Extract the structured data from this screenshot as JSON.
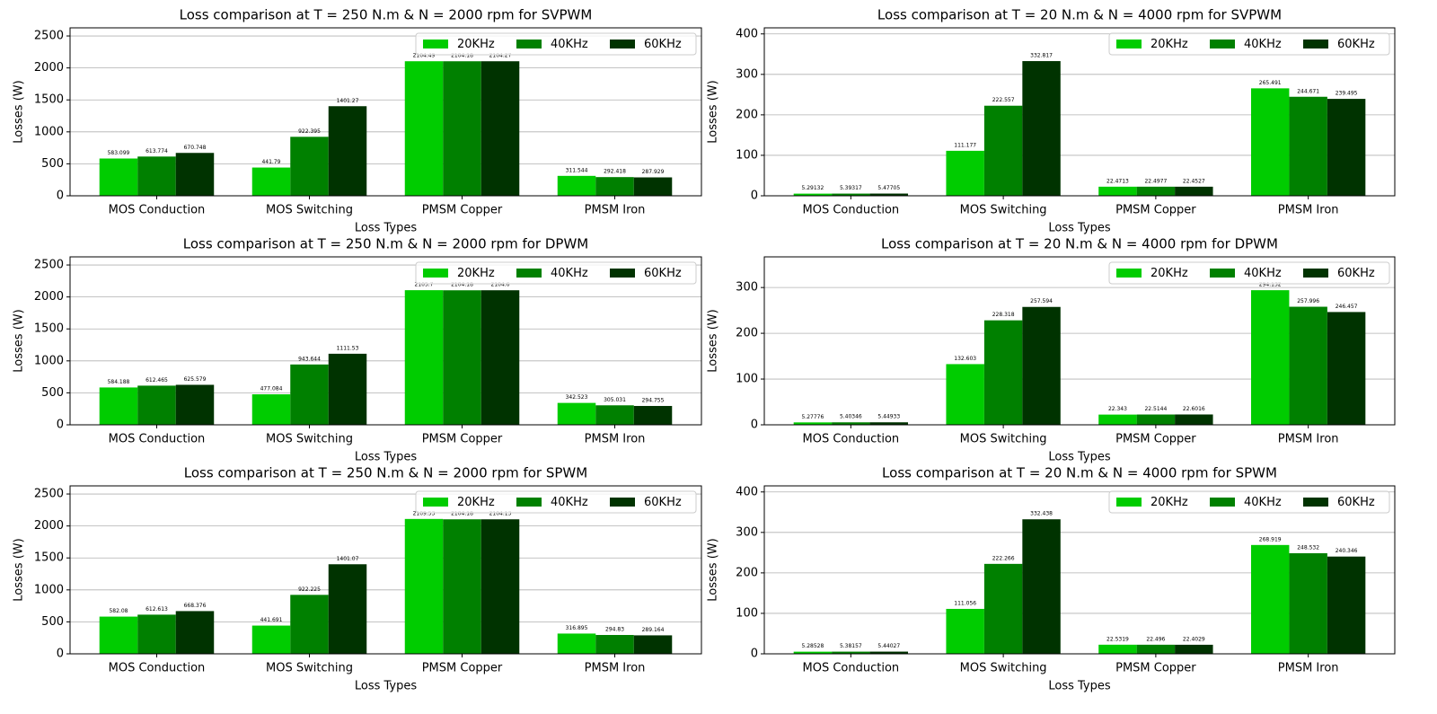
{
  "chart_data": [
    {
      "type": "bar",
      "title": "Loss comparison at T = 250 N.m & N = 2000 rpm for SVPWM",
      "xlabel": "Loss Types",
      "ylabel": "Losses (W)",
      "categories": [
        "MOS Conduction",
        "MOS Switching",
        "PMSM Copper",
        "PMSM Iron"
      ],
      "series": [
        {
          "name": "20KHz",
          "color": "#00cc00",
          "values": [
            583.099,
            441.79,
            2104.49,
            311.544
          ]
        },
        {
          "name": "40KHz",
          "color": "#008000",
          "values": [
            613.774,
            922.395,
            2104.18,
            292.418
          ]
        },
        {
          "name": "60KHz",
          "color": "#003300",
          "values": [
            670.748,
            1401.27,
            2104.27,
            287.929
          ]
        }
      ],
      "ylim": [
        0,
        2627
      ],
      "yticks": [
        0,
        500,
        1000,
        1500,
        2000,
        2500
      ],
      "grid": true,
      "legend": "upper right"
    },
    {
      "type": "bar",
      "title": "Loss comparison at T = 20 N.m & N = 4000 rpm for SVPWM",
      "xlabel": "Loss Types",
      "ylabel": "Losses (W)",
      "categories": [
        "MOS Conduction",
        "MOS Switching",
        "PMSM Copper",
        "PMSM Iron"
      ],
      "series": [
        {
          "name": "20KHz",
          "color": "#00cc00",
          "values": [
            5.29132,
            111.177,
            22.4713,
            265.491
          ]
        },
        {
          "name": "40KHz",
          "color": "#008000",
          "values": [
            5.39317,
            222.557,
            22.4977,
            244.671
          ]
        },
        {
          "name": "60KHz",
          "color": "#003300",
          "values": [
            5.47705,
            332.817,
            22.4527,
            239.495
          ]
        }
      ],
      "ylim": [
        0,
        415
      ],
      "yticks": [
        0,
        100,
        200,
        300,
        400
      ],
      "grid": true,
      "legend": "upper right"
    },
    {
      "type": "bar",
      "title": "Loss comparison at T = 250 N.m & N = 2000 rpm for DPWM",
      "xlabel": "Loss Types",
      "ylabel": "Losses (W)",
      "categories": [
        "MOS Conduction",
        "MOS Switching",
        "PMSM Copper",
        "PMSM Iron"
      ],
      "series": [
        {
          "name": "20KHz",
          "color": "#00cc00",
          "values": [
            584.188,
            477.084,
            2105.7,
            342.523
          ]
        },
        {
          "name": "40KHz",
          "color": "#008000",
          "values": [
            612.465,
            943.644,
            2104.18,
            305.031
          ]
        },
        {
          "name": "60KHz",
          "color": "#003300",
          "values": [
            625.579,
            1111.53,
            2104.6,
            294.755
          ]
        }
      ],
      "ylim": [
        0,
        2627
      ],
      "yticks": [
        0,
        500,
        1000,
        1500,
        2000,
        2500
      ],
      "grid": true,
      "legend": "upper right"
    },
    {
      "type": "bar",
      "title": "Loss comparison at T = 20 N.m & N = 4000 rpm for DPWM",
      "xlabel": "Loss Types",
      "ylabel": "Losses (W)",
      "categories": [
        "MOS Conduction",
        "MOS Switching",
        "PMSM Copper",
        "PMSM Iron"
      ],
      "series": [
        {
          "name": "20KHz",
          "color": "#00cc00",
          "values": [
            5.27776,
            132.603,
            22.343,
            294.132
          ]
        },
        {
          "name": "40KHz",
          "color": "#008000",
          "values": [
            5.40346,
            228.318,
            22.5144,
            257.996
          ]
        },
        {
          "name": "60KHz",
          "color": "#003300",
          "values": [
            5.44933,
            257.594,
            22.6016,
            246.457
          ]
        }
      ],
      "ylim": [
        0,
        367
      ],
      "yticks": [
        0,
        100,
        200,
        300
      ],
      "grid": true,
      "legend": "upper right"
    },
    {
      "type": "bar",
      "title": "Loss comparison at T = 250 N.m & N = 2000 rpm for SPWM",
      "xlabel": "Loss Types",
      "ylabel": "Losses (W)",
      "categories": [
        "MOS Conduction",
        "MOS Switching",
        "PMSM Copper",
        "PMSM Iron"
      ],
      "series": [
        {
          "name": "20KHz",
          "color": "#00cc00",
          "values": [
            582.08,
            441.691,
            2109.53,
            316.895
          ]
        },
        {
          "name": "40KHz",
          "color": "#008000",
          "values": [
            612.613,
            922.225,
            2104.18,
            294.83
          ]
        },
        {
          "name": "60KHz",
          "color": "#003300",
          "values": [
            668.376,
            1401.07,
            2104.13,
            289.164
          ]
        }
      ],
      "ylim": [
        0,
        2627
      ],
      "yticks": [
        0,
        500,
        1000,
        1500,
        2000,
        2500
      ],
      "grid": true,
      "legend": "upper right"
    },
    {
      "type": "bar",
      "title": "Loss comparison at T = 20 N.m & N = 4000 rpm for SPWM",
      "xlabel": "Loss Types",
      "ylabel": "Losses (W)",
      "categories": [
        "MOS Conduction",
        "MOS Switching",
        "PMSM Copper",
        "PMSM Iron"
      ],
      "series": [
        {
          "name": "20KHz",
          "color": "#00cc00",
          "values": [
            5.28528,
            111.056,
            22.5319,
            268.919
          ]
        },
        {
          "name": "40KHz",
          "color": "#008000",
          "values": [
            5.38157,
            222.266,
            22.496,
            248.532
          ]
        },
        {
          "name": "60KHz",
          "color": "#003300",
          "values": [
            5.44027,
            332.438,
            22.4029,
            240.346
          ]
        }
      ],
      "ylim": [
        0,
        415
      ],
      "yticks": [
        0,
        100,
        200,
        300,
        400
      ],
      "grid": true,
      "legend": "upper right"
    }
  ]
}
